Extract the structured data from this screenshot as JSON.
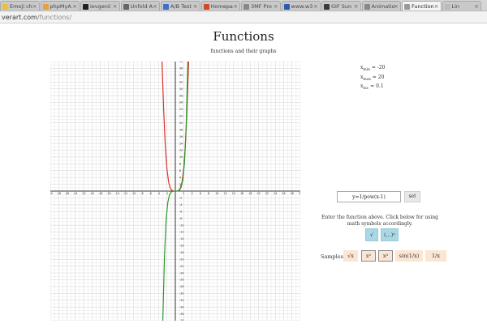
{
  "browser": {
    "tabs": [
      {
        "label": "Emoji ch",
        "active": false,
        "color": "#e9c23c"
      },
      {
        "label": "phpMyA",
        "active": false,
        "color": "#e8a23c"
      },
      {
        "label": "ievgenii",
        "active": false,
        "color": "#222222"
      },
      {
        "label": "Unfold A",
        "active": false,
        "color": "#666666"
      },
      {
        "label": "A/B Test",
        "active": false,
        "color": "#3b6fd0"
      },
      {
        "label": "Homepa",
        "active": false,
        "color": "#d04a2a"
      },
      {
        "label": "3MF Pro",
        "active": false,
        "color": "#888888"
      },
      {
        "label": "www.w3",
        "active": false,
        "color": "#2a5db0"
      },
      {
        "label": "GIF Sun",
        "active": false,
        "color": "#3b3b3b"
      },
      {
        "label": "Animatio",
        "active": false,
        "color": "#888888"
      },
      {
        "label": "Function",
        "active": true,
        "color": "#999999"
      },
      {
        "label": "Lin",
        "active": false,
        "color": "#bbbbbb"
      }
    ],
    "url_host": "verart.com",
    "url_path": "/functions/"
  },
  "page": {
    "title": "Functions",
    "subtitle": "functions and their graphs"
  },
  "range": {
    "xmin_label": "x",
    "xmin_sub": "min",
    "xmin_value": " = -20",
    "xmax_label": "x",
    "xmax_sub": "max",
    "xmax_value": " = 20",
    "xinc_label": "x",
    "xinc_sub": "inc",
    "xinc_value": " = 0.1"
  },
  "form": {
    "function_value": "y=1/pow(x-1)",
    "set_label": "set",
    "instructions": "Enter the function above. Click below for using math symbols accordingly.",
    "symbol_buttons": [
      "√",
      "(...)ⁿ"
    ],
    "samples_label": "Samples:",
    "samples": [
      "√x",
      "x²",
      "x³",
      "sin(1/x)",
      "1/x"
    ]
  },
  "chart_data": {
    "type": "line",
    "x_ticks": [
      -30,
      -28,
      -26,
      -24,
      -22,
      -20,
      -18,
      -16,
      -14,
      -12,
      -10,
      -8,
      -6,
      -4,
      -2,
      2,
      4,
      6,
      8,
      10,
      12,
      14,
      16,
      18,
      20,
      22,
      24,
      26,
      28,
      30
    ],
    "y_ticks": [
      38,
      36,
      34,
      32,
      30,
      28,
      26,
      24,
      22,
      20,
      18,
      16,
      14,
      12,
      10,
      8,
      6,
      4,
      2,
      -2,
      -4,
      -6,
      -8,
      -10,
      -12,
      -14,
      -16,
      -18,
      -20,
      -22,
      -24,
      -26,
      -28,
      -30,
      -32,
      -34,
      -36,
      -38
    ],
    "xlim": [
      -30,
      30
    ],
    "ylim": [
      -38,
      38
    ],
    "grid": true,
    "series": [
      {
        "color": "#e0302a",
        "curve": "even-power",
        "points": [
          [
            -3.2,
            38
          ],
          [
            -2.8,
            24
          ],
          [
            -2.4,
            13
          ],
          [
            -2,
            6.4
          ],
          [
            -1.6,
            2.6
          ],
          [
            -1.2,
            0.8
          ],
          [
            -0.8,
            0.2
          ],
          [
            -0.4,
            0
          ],
          [
            0,
            0
          ],
          [
            0.4,
            0
          ],
          [
            0.8,
            0.2
          ],
          [
            1.2,
            0.8
          ],
          [
            1.6,
            2.6
          ],
          [
            2,
            6.4
          ],
          [
            2.4,
            13
          ],
          [
            2.8,
            24
          ],
          [
            3.2,
            38
          ]
        ]
      },
      {
        "color": "#2a9a2a",
        "curve": "odd-power",
        "points": [
          [
            -3.0,
            -38
          ],
          [
            -2.6,
            -19
          ],
          [
            -2.2,
            -8.3
          ],
          [
            -1.8,
            -3.3
          ],
          [
            -1.4,
            -1.1
          ],
          [
            -1.0,
            -0.3
          ],
          [
            -0.6,
            -0.05
          ],
          [
            0,
            0
          ],
          [
            0.6,
            0.05
          ],
          [
            1.0,
            0.3
          ],
          [
            1.4,
            1.1
          ],
          [
            1.8,
            3.3
          ],
          [
            2.2,
            8.3
          ],
          [
            2.6,
            19
          ],
          [
            3.0,
            38
          ]
        ]
      }
    ]
  }
}
